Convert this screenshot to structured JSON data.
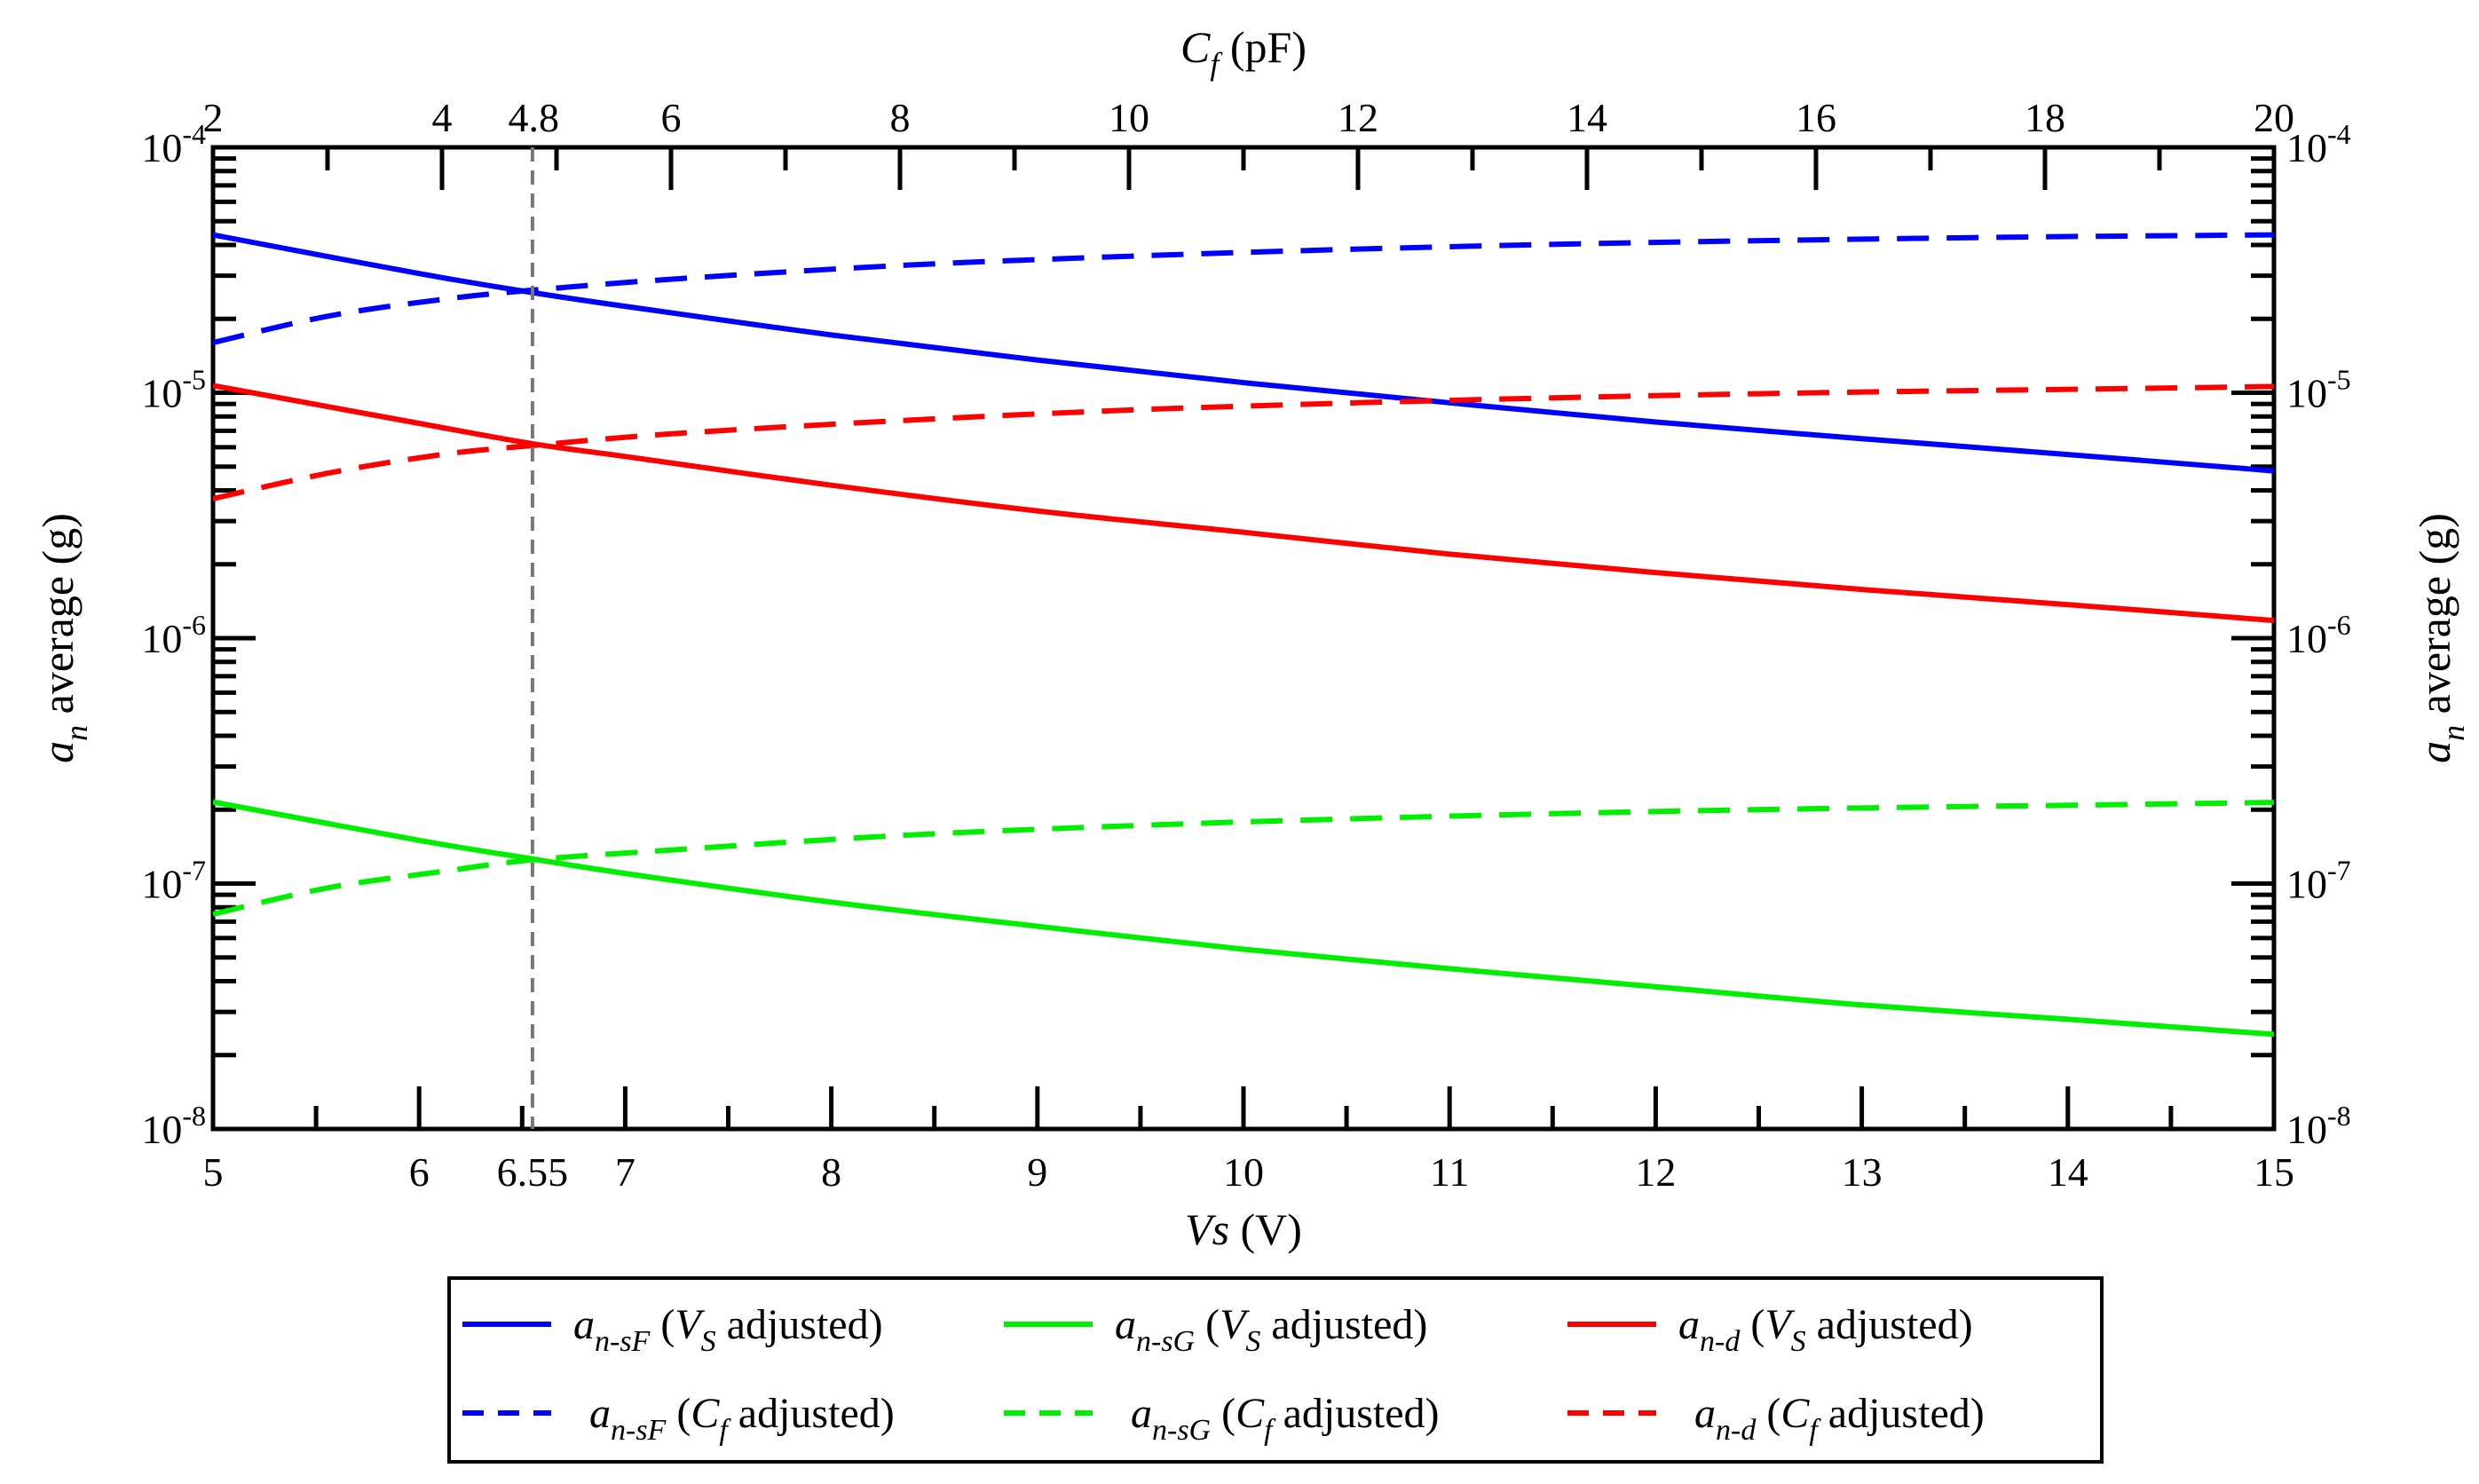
{
  "chart_data": {
    "type": "line",
    "title": "",
    "x_bottom": {
      "label_var": "Vs",
      "label_unit": "(V)",
      "range": [
        5,
        15
      ],
      "ticks": [
        "5",
        "6",
        "7",
        "8",
        "9",
        "10",
        "11",
        "12",
        "13",
        "14",
        "15"
      ],
      "marker_value": 6.55,
      "marker_label": "6.55"
    },
    "x_top": {
      "label_var": "C",
      "label_sub": "f",
      "label_unit": "(pF)",
      "range": [
        2,
        20
      ],
      "ticks": [
        "2",
        "4",
        "6",
        "8",
        "10",
        "12",
        "14",
        "16",
        "18",
        "20"
      ],
      "marker_value": 4.8,
      "marker_label": "4.8"
    },
    "y_left": {
      "label_var": "a",
      "label_sub": "n",
      "label_text": "average (g)",
      "scale": "log",
      "range": [
        1e-08,
        0.0001
      ],
      "ticks": [
        {
          "value": 1e-08,
          "base": "10",
          "exp": "-8"
        },
        {
          "value": 1e-07,
          "base": "10",
          "exp": "-7"
        },
        {
          "value": 1e-06,
          "base": "10",
          "exp": "-6"
        },
        {
          "value": 1e-05,
          "base": "10",
          "exp": "-5"
        },
        {
          "value": 0.0001,
          "base": "10",
          "exp": "-4"
        }
      ]
    },
    "y_right": {
      "label_var": "a",
      "label_sub": "n",
      "label_text": "average (g)",
      "ticks": [
        {
          "value": 1e-08,
          "base": "10",
          "exp": "-8"
        },
        {
          "value": 1e-07,
          "base": "10",
          "exp": "-7"
        },
        {
          "value": 1e-06,
          "base": "10",
          "exp": "-6"
        },
        {
          "value": 1e-05,
          "base": "10",
          "exp": "-5"
        },
        {
          "value": 0.0001,
          "base": "10",
          "exp": "-4"
        }
      ]
    },
    "series": [
      {
        "name": "a_n-sF (V_S adjusted)",
        "sym": "a",
        "sub": "n-sF",
        "paren_var": "V",
        "paren_sub": "S",
        "paren_rest": "adjusted)",
        "color": "#0000ff",
        "dash": "solid",
        "x_axis": "bottom",
        "x": [
          5,
          6,
          6.55,
          7,
          8,
          9,
          10,
          11,
          12,
          13,
          14,
          15
        ],
        "y": [
          4.4e-05,
          3.06e-05,
          2.56e-05,
          2.25e-05,
          1.72e-05,
          1.36e-05,
          1.1e-05,
          9.1e-06,
          7.6e-06,
          6.5e-06,
          5.6e-06,
          4.8e-06
        ]
      },
      {
        "name": "a_n-sG (V_S adjusted)",
        "sym": "a",
        "sub": "n-sG",
        "paren_var": "V",
        "paren_sub": "S",
        "paren_rest": "adjusted)",
        "color": "#00ee00",
        "dash": "solid",
        "x_axis": "bottom",
        "x": [
          5,
          6,
          6.55,
          7,
          8,
          9,
          10,
          11,
          12,
          13,
          14,
          15
        ],
        "y": [
          2.15e-07,
          1.5e-07,
          1.26e-07,
          1.1e-07,
          8.4e-08,
          6.7e-08,
          5.4e-08,
          4.5e-08,
          3.8e-08,
          3.2e-08,
          2.8e-08,
          2.43e-08
        ]
      },
      {
        "name": "a_n-d (V_S adjusted)",
        "sym": "a",
        "sub": "n-d",
        "paren_var": "V",
        "paren_sub": "S",
        "paren_rest": "adjusted)",
        "color": "#ff0000",
        "dash": "solid",
        "x_axis": "bottom",
        "x": [
          5,
          6,
          6.55,
          7,
          8,
          9,
          10,
          11,
          12,
          13,
          14,
          15
        ],
        "y": [
          1.07e-05,
          7.5e-06,
          6.2e-06,
          5.5e-06,
          4.2e-06,
          3.3e-06,
          2.7e-06,
          2.2e-06,
          1.85e-06,
          1.58e-06,
          1.37e-06,
          1.18e-06
        ]
      },
      {
        "name": "a_n-sF (C_f adjusted)",
        "sym": "a",
        "sub": "n-sF",
        "paren_var": "C",
        "paren_sub": "f",
        "paren_rest": "adjusted)",
        "color": "#0000ff",
        "dash": "dashed",
        "x_axis": "top",
        "x": [
          2,
          3,
          4,
          4.8,
          6,
          8,
          10,
          12,
          14,
          16,
          18,
          20
        ],
        "y": [
          1.6e-05,
          2.05e-05,
          2.4e-05,
          2.62e-05,
          2.9e-05,
          3.3e-05,
          3.6e-05,
          3.85e-05,
          4.05e-05,
          4.2e-05,
          4.32e-05,
          4.4e-05
        ]
      },
      {
        "name": "a_n-sG (C_f adjusted)",
        "sym": "a",
        "sub": "n-sG",
        "paren_var": "C",
        "paren_sub": "f",
        "paren_rest": "adjusted)",
        "color": "#00ee00",
        "dash": "dashed",
        "x_axis": "top",
        "x": [
          2,
          3,
          4,
          4.8,
          6,
          8,
          10,
          12,
          14,
          16,
          18,
          20
        ],
        "y": [
          7.5e-08,
          9.6e-08,
          1.12e-07,
          1.25e-07,
          1.37e-07,
          1.57e-07,
          1.72e-07,
          1.84e-07,
          1.94e-07,
          2.02e-07,
          2.08e-07,
          2.14e-07
        ]
      },
      {
        "name": "a_n-d (C_f adjusted)",
        "sym": "a",
        "sub": "n-d",
        "paren_var": "C",
        "paren_sub": "f",
        "paren_rest": "adjusted)",
        "color": "#ff0000",
        "dash": "dashed",
        "x_axis": "top",
        "x": [
          2,
          3,
          4,
          4.8,
          6,
          8,
          10,
          12,
          14,
          16,
          18,
          20
        ],
        "y": [
          3.7e-06,
          4.7e-06,
          5.6e-06,
          6.1e-06,
          6.8e-06,
          7.7e-06,
          8.5e-06,
          9.1e-06,
          9.6e-06,
          1e-05,
          1.03e-05,
          1.06e-05
        ]
      }
    ],
    "legend": {
      "placement": "bottom",
      "columns": 3
    }
  }
}
